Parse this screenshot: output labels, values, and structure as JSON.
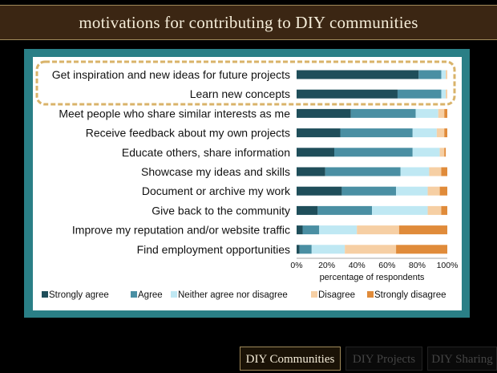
{
  "slide": {
    "title": "motivations for contributing to DIY communities"
  },
  "nav": {
    "tabs": [
      {
        "label": "DIY Communities",
        "active": true
      },
      {
        "label": "DIY Projects",
        "active": false
      },
      {
        "label": "DIY Sharing",
        "active": false
      }
    ]
  },
  "chart_data": {
    "type": "bar",
    "orientation": "horizontal",
    "stacked": true,
    "categories": [
      "Get inspiration and new ideas for future projects",
      "Learn new concepts",
      "Meet people who share similar interests as me",
      "Receive feedback about my own projects",
      "Educate others, share information",
      "Showcase my ideas and skills",
      "Document or archive my work",
      "Give back to the community",
      "Improve my reputation and/or website traffic",
      "Find employment opportunities"
    ],
    "series": [
      {
        "name": "Strongly agree",
        "color": "#1f4e5a",
        "values": [
          81,
          67,
          36,
          29,
          25,
          19,
          30,
          14,
          4,
          2
        ]
      },
      {
        "name": "Agree",
        "color": "#4a8fa3",
        "values": [
          15,
          29,
          43,
          48,
          52,
          50,
          36,
          36,
          11,
          8
        ]
      },
      {
        "name": "Neither agree nor disagree",
        "color": "#bfe8f3",
        "values": [
          3,
          3,
          15,
          16,
          18,
          19,
          21,
          37,
          25,
          22
        ]
      },
      {
        "name": "Disagree",
        "color": "#f6cfa4",
        "values": [
          1,
          1,
          4,
          5,
          3,
          8,
          8,
          9,
          28,
          34
        ]
      },
      {
        "name": "Strongly disagree",
        "color": "#e08b3a",
        "values": [
          0,
          0,
          2,
          2,
          1,
          4,
          5,
          4,
          32,
          34
        ]
      }
    ],
    "xlabel": "percentage of respondents",
    "xticks": [
      "0%",
      "20%",
      "40%",
      "60%",
      "80%",
      "100%"
    ],
    "xlim": [
      0,
      100
    ],
    "legend_position": "bottom",
    "highlighted_categories": [
      0,
      1
    ]
  }
}
